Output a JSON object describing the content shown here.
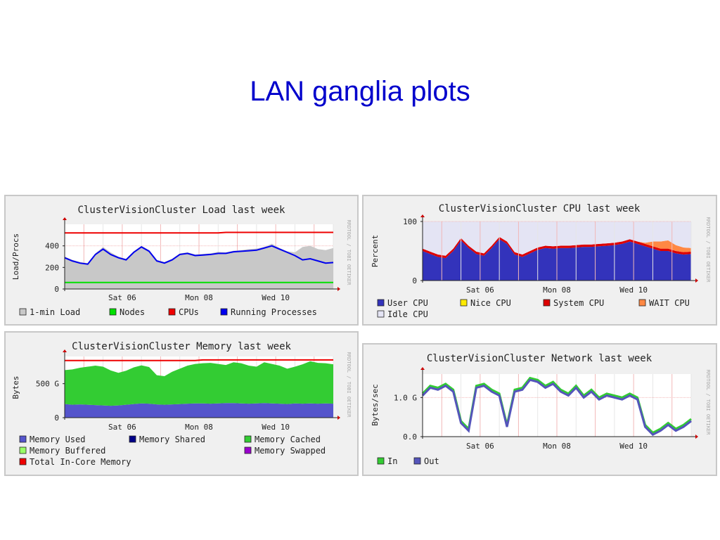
{
  "slide": {
    "title": "LAN ganglia plots"
  },
  "watermark": "RRDTOOL / TOBI OETIKER",
  "colors": {
    "load_area": "#c8c8c8",
    "nodes": "#00e000",
    "cpus": "#ee0000",
    "procs": "#0000ee",
    "user_cpu": "#3333bb",
    "nice_cpu": "#ffea00",
    "system_cpu": "#dd0000",
    "wait_cpu": "#ff8844",
    "idle_cpu": "#e4e4f4",
    "mem_used": "#5555cc",
    "mem_shared": "#000088",
    "mem_cached": "#33cc33",
    "mem_buffered": "#99ff66",
    "mem_swapped": "#9900cc",
    "mem_total": "#ee0000",
    "net_in": "#33cc33",
    "net_out": "#5555bb"
  },
  "chart_data": [
    {
      "id": "load",
      "type": "area",
      "title": "ClusterVisionCluster Load last week",
      "ylabel": "Load/Procs",
      "ylim": [
        0,
        600
      ],
      "yticks": [
        {
          "v": 0,
          "label": "0"
        },
        {
          "v": 200,
          "label": "200"
        },
        {
          "v": 400,
          "label": "400"
        }
      ],
      "xlim": [
        0,
        7
      ],
      "xticks": [
        {
          "v": 1.5,
          "label": "Sat 06"
        },
        {
          "v": 3.5,
          "label": "Mon 08"
        },
        {
          "v": 5.5,
          "label": "Wed 10"
        }
      ],
      "x": [
        0,
        0.2,
        0.4,
        0.6,
        0.8,
        1.0,
        1.2,
        1.4,
        1.6,
        1.8,
        2.0,
        2.2,
        2.4,
        2.6,
        2.8,
        3.0,
        3.2,
        3.4,
        3.6,
        3.8,
        4.0,
        4.2,
        4.4,
        4.6,
        4.8,
        5.0,
        5.2,
        5.4,
        5.6,
        5.8,
        6.0,
        6.2,
        6.4,
        6.6,
        6.8,
        7.0
      ],
      "series": [
        {
          "name": "1-min Load",
          "color_key": "load_area",
          "style": "area",
          "values": [
            300,
            270,
            250,
            240,
            330,
            390,
            340,
            300,
            280,
            350,
            400,
            360,
            270,
            250,
            280,
            330,
            340,
            320,
            325,
            330,
            345,
            340,
            355,
            360,
            370,
            375,
            390,
            420,
            380,
            350,
            340,
            390,
            400,
            370,
            360,
            380
          ]
        },
        {
          "name": "Nodes",
          "color_key": "nodes",
          "style": "line",
          "values": [
            60,
            60,
            60,
            60,
            60,
            60,
            60,
            60,
            60,
            60,
            60,
            60,
            60,
            60,
            60,
            60,
            60,
            60,
            60,
            60,
            60,
            60,
            60,
            60,
            60,
            60,
            60,
            60,
            60,
            60,
            60,
            60,
            60,
            60,
            60,
            60
          ]
        },
        {
          "name": "CPUs",
          "color_key": "cpus",
          "style": "line",
          "values": [
            520,
            520,
            520,
            520,
            520,
            520,
            520,
            520,
            520,
            520,
            520,
            520,
            520,
            520,
            520,
            520,
            520,
            520,
            520,
            520,
            520,
            525,
            525,
            525,
            525,
            525,
            525,
            525,
            525,
            525,
            525,
            525,
            525,
            525,
            525,
            525
          ]
        },
        {
          "name": "Running Processes",
          "color_key": "procs",
          "style": "line",
          "values": [
            290,
            260,
            240,
            230,
            320,
            370,
            320,
            290,
            270,
            340,
            390,
            350,
            260,
            240,
            270,
            320,
            330,
            310,
            315,
            320,
            330,
            330,
            345,
            350,
            355,
            360,
            380,
            400,
            370,
            340,
            310,
            270,
            280,
            260,
            240,
            245
          ]
        }
      ]
    },
    {
      "id": "cpu",
      "type": "area",
      "title": "ClusterVisionCluster CPU last week",
      "ylabel": "Percent",
      "ylim": [
        0,
        100
      ],
      "yticks": [
        {
          "v": 0,
          "label": "0"
        },
        {
          "v": 100,
          "label": "100"
        }
      ],
      "xlim": [
        0,
        7
      ],
      "xticks": [
        {
          "v": 1.5,
          "label": "Sat 06"
        },
        {
          "v": 3.5,
          "label": "Mon 08"
        },
        {
          "v": 5.5,
          "label": "Wed 10"
        }
      ],
      "x": [
        0,
        0.2,
        0.4,
        0.6,
        0.8,
        1.0,
        1.2,
        1.4,
        1.6,
        1.8,
        2.0,
        2.2,
        2.4,
        2.6,
        2.8,
        3.0,
        3.2,
        3.4,
        3.6,
        3.8,
        4.0,
        4.2,
        4.4,
        4.6,
        4.8,
        5.0,
        5.2,
        5.4,
        5.6,
        5.8,
        6.0,
        6.2,
        6.4,
        6.6,
        6.8,
        7.0
      ],
      "series": [
        {
          "name": "User CPU",
          "color_key": "user_cpu",
          "values": [
            50,
            45,
            40,
            38,
            50,
            68,
            55,
            45,
            42,
            55,
            70,
            62,
            44,
            40,
            46,
            52,
            55,
            54,
            55,
            55,
            56,
            57,
            57,
            58,
            59,
            60,
            62,
            66,
            62,
            58,
            54,
            50,
            50,
            46,
            44,
            45
          ]
        },
        {
          "name": "Nice CPU",
          "color_key": "nice_cpu",
          "values": [
            0,
            0,
            0,
            0,
            0,
            0,
            0,
            0,
            0,
            0,
            0,
            0,
            0,
            0,
            0,
            0,
            0,
            0,
            0,
            0,
            0,
            0,
            0,
            0,
            0,
            0,
            0,
            0,
            0,
            0,
            0,
            0,
            0,
            0,
            0,
            0
          ]
        },
        {
          "name": "System CPU",
          "color_key": "system_cpu",
          "values": [
            4,
            4,
            4,
            4,
            4,
            4,
            4,
            4,
            4,
            4,
            4,
            4,
            4,
            4,
            4,
            4,
            4,
            4,
            4,
            4,
            4,
            4,
            4,
            4,
            4,
            4,
            4,
            4,
            4,
            4,
            4,
            4,
            4,
            4,
            4,
            4
          ]
        },
        {
          "name": "WAIT CPU",
          "color_key": "wait_cpu",
          "values": [
            0,
            0,
            0,
            0,
            0,
            0,
            0,
            0,
            0,
            0,
            0,
            0,
            0,
            0,
            0,
            0,
            0,
            0,
            0,
            0,
            0,
            0,
            0,
            0,
            0,
            0,
            0,
            0,
            0,
            2,
            8,
            12,
            14,
            10,
            8,
            6
          ]
        },
        {
          "name": "Idle CPU",
          "color_key": "idle_cpu",
          "values": [
            46,
            51,
            56,
            58,
            46,
            28,
            41,
            51,
            54,
            41,
            26,
            34,
            52,
            56,
            50,
            44,
            41,
            42,
            41,
            41,
            40,
            39,
            39,
            38,
            37,
            36,
            34,
            30,
            34,
            36,
            34,
            34,
            32,
            40,
            44,
            45
          ]
        }
      ]
    },
    {
      "id": "memory",
      "type": "area",
      "title": "ClusterVisionCluster Memory last week",
      "ylabel": "Bytes",
      "ylim": [
        0,
        900
      ],
      "yticks": [
        {
          "v": 0,
          "label": "0"
        },
        {
          "v": 500,
          "label": "500 G"
        }
      ],
      "xlim": [
        0,
        7
      ],
      "xticks": [
        {
          "v": 1.5,
          "label": "Sat 06"
        },
        {
          "v": 3.5,
          "label": "Mon 08"
        },
        {
          "v": 5.5,
          "label": "Wed 10"
        }
      ],
      "x": [
        0,
        0.2,
        0.4,
        0.6,
        0.8,
        1.0,
        1.2,
        1.4,
        1.6,
        1.8,
        2.0,
        2.2,
        2.4,
        2.6,
        2.8,
        3.0,
        3.2,
        3.4,
        3.6,
        3.8,
        4.0,
        4.2,
        4.4,
        4.6,
        4.8,
        5.0,
        5.2,
        5.4,
        5.6,
        5.8,
        6.0,
        6.2,
        6.4,
        6.6,
        6.8,
        7.0
      ],
      "stack": [
        {
          "name": "Memory Used",
          "color_key": "mem_used",
          "values": [
            200,
            190,
            195,
            190,
            185,
            180,
            175,
            180,
            190,
            200,
            210,
            205,
            195,
            190,
            195,
            200,
            205,
            210,
            210,
            205,
            210,
            215,
            215,
            210,
            205,
            210,
            215,
            210,
            205,
            200,
            210,
            205,
            210,
            205,
            210,
            205
          ]
        },
        {
          "name": "Memory Cached",
          "color_key": "mem_cached",
          "values": [
            500,
            520,
            540,
            560,
            580,
            570,
            520,
            480,
            500,
            540,
            560,
            540,
            430,
            420,
            480,
            520,
            560,
            580,
            590,
            600,
            580,
            560,
            600,
            590,
            560,
            540,
            600,
            580,
            560,
            520,
            540,
            580,
            620,
            600,
            590,
            580
          ]
        }
      ],
      "lines": [
        {
          "name": "Total In-Core Memory",
          "color_key": "mem_total",
          "values": [
            840,
            840,
            840,
            840,
            840,
            840,
            840,
            840,
            840,
            840,
            840,
            840,
            840,
            840,
            840,
            840,
            840,
            840,
            850,
            850,
            850,
            850,
            850,
            850,
            850,
            850,
            850,
            850,
            850,
            850,
            850,
            850,
            850,
            850,
            850,
            850
          ]
        }
      ],
      "legend": [
        "Memory Used",
        "Memory Shared",
        "Memory Cached",
        "Memory Buffered",
        "Memory Swapped",
        "Total In-Core Memory"
      ],
      "legend_colors": [
        "mem_used",
        "mem_shared",
        "mem_cached",
        "mem_buffered",
        "mem_swapped",
        "mem_total"
      ]
    },
    {
      "id": "network",
      "type": "line",
      "title": "ClusterVisionCluster Network last week",
      "ylabel": "Bytes/sec",
      "ylim": [
        0,
        1.6
      ],
      "yticks": [
        {
          "v": 0,
          "label": "0.0"
        },
        {
          "v": 1.0,
          "label": "1.0 G"
        }
      ],
      "xlim": [
        0,
        7
      ],
      "xticks": [
        {
          "v": 1.5,
          "label": "Sat 06"
        },
        {
          "v": 3.5,
          "label": "Mon 08"
        },
        {
          "v": 5.5,
          "label": "Wed 10"
        }
      ],
      "x": [
        0,
        0.2,
        0.4,
        0.6,
        0.8,
        1.0,
        1.2,
        1.4,
        1.6,
        1.8,
        2.0,
        2.2,
        2.4,
        2.6,
        2.8,
        3.0,
        3.2,
        3.4,
        3.6,
        3.8,
        4.0,
        4.2,
        4.4,
        4.6,
        4.8,
        5.0,
        5.2,
        5.4,
        5.6,
        5.8,
        6.0,
        6.2,
        6.4,
        6.6,
        6.8,
        7.0
      ],
      "series": [
        {
          "name": "In",
          "color_key": "net_in",
          "values": [
            1.1,
            1.3,
            1.25,
            1.35,
            1.2,
            0.4,
            0.2,
            1.3,
            1.35,
            1.2,
            1.1,
            0.3,
            1.2,
            1.25,
            1.5,
            1.45,
            1.3,
            1.4,
            1.2,
            1.1,
            1.3,
            1.05,
            1.2,
            1.0,
            1.1,
            1.05,
            1.0,
            1.1,
            1.0,
            0.3,
            0.1,
            0.2,
            0.35,
            0.2,
            0.3,
            0.45
          ]
        },
        {
          "name": "Out",
          "color_key": "net_out",
          "values": [
            1.05,
            1.25,
            1.2,
            1.3,
            1.15,
            0.35,
            0.15,
            1.25,
            1.3,
            1.15,
            1.05,
            0.25,
            1.15,
            1.2,
            1.45,
            1.4,
            1.25,
            1.35,
            1.15,
            1.05,
            1.25,
            1.0,
            1.15,
            0.95,
            1.05,
            1.0,
            0.95,
            1.05,
            0.95,
            0.25,
            0.05,
            0.15,
            0.3,
            0.15,
            0.25,
            0.4
          ]
        }
      ]
    }
  ]
}
